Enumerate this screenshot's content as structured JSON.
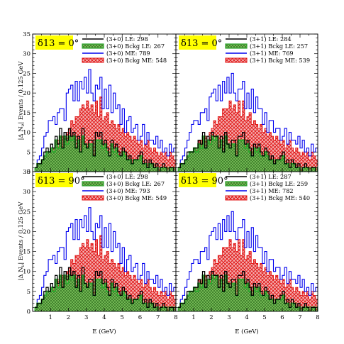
{
  "figure": {
    "ylabel": "|Δ N",
    "ylabel_sub": "ν",
    "ylabel_rest": "| Events / 0.125 GeV",
    "xlabel": "E (GeV)",
    "x_ticks": [
      "1",
      "2",
      "3",
      "4",
      "5",
      "6",
      "7",
      "8"
    ],
    "y_ticks": [
      "0",
      "5",
      "10",
      "15",
      "20",
      "25",
      "30",
      "35"
    ],
    "colors": {
      "le": "#000000",
      "bckg_le": "#2fa82f",
      "me": "#0000ee",
      "bckg_me": "#e01010",
      "badge": "#ffff00"
    }
  },
  "chart_data": [
    {
      "type": "area",
      "delta_label": "δ13 = 0°",
      "xlim": [
        0,
        8
      ],
      "ylim": [
        0,
        35
      ],
      "legend": [
        "(3+0) LE: 298",
        "(3+0) Bckg LE: 267",
        "(3+0) ME: 789",
        "(3+0) Bckg ME: 548"
      ],
      "bin_width": 0.125,
      "x_start": 0.125,
      "series": [
        {
          "name": "(3+0) LE: 298",
          "values": [
            1,
            2,
            2,
            3,
            5,
            6,
            5,
            7,
            6,
            9,
            7,
            11,
            6,
            10,
            8,
            11,
            9,
            10,
            6,
            9,
            5,
            11,
            7,
            6,
            8,
            8,
            4,
            10,
            9,
            10,
            7,
            8,
            6,
            4,
            8,
            6,
            7,
            5,
            4,
            6,
            5,
            3,
            4,
            2,
            3,
            3,
            4,
            5,
            2,
            3,
            1,
            3,
            2,
            1,
            2,
            0,
            1,
            2,
            1,
            0,
            1,
            1,
            0,
            1
          ]
        },
        {
          "name": "(3+0) Bckg LE: 267",
          "values": [
            1,
            2,
            2,
            3,
            4,
            5,
            5,
            6,
            5,
            8,
            6,
            9,
            6,
            9,
            7,
            9,
            8,
            9,
            6,
            8,
            5,
            9,
            7,
            6,
            7,
            7,
            4,
            8,
            8,
            8,
            6,
            7,
            5,
            4,
            7,
            5,
            6,
            4,
            4,
            5,
            4,
            3,
            3,
            2,
            3,
            3,
            3,
            4,
            2,
            2,
            1,
            2,
            2,
            1,
            1,
            0,
            1,
            1,
            1,
            0,
            1,
            1,
            0,
            1
          ]
        },
        {
          "name": "(3+0) ME: 789",
          "values": [
            1,
            3,
            4,
            6,
            9,
            10,
            13,
            13,
            14,
            12,
            15,
            16,
            16,
            13,
            20,
            21,
            22,
            18,
            23,
            18,
            23,
            21,
            24,
            20,
            26,
            20,
            18,
            22,
            21,
            24,
            16,
            21,
            16,
            22,
            15,
            20,
            16,
            17,
            12,
            16,
            10,
            13,
            14,
            10,
            11,
            12,
            8,
            9,
            12,
            7,
            10,
            8,
            8,
            7,
            9,
            6,
            8,
            5,
            6,
            4,
            7,
            5,
            6,
            5
          ]
        },
        {
          "name": "(3+0) Bckg ME: 548",
          "values": [
            0,
            1,
            2,
            3,
            4,
            5,
            5,
            6,
            6,
            8,
            8,
            8,
            9,
            8,
            10,
            11,
            13,
            12,
            14,
            14,
            16,
            17,
            16,
            18,
            16,
            17,
            15,
            18,
            14,
            19,
            13,
            14,
            15,
            12,
            13,
            12,
            11,
            12,
            10,
            11,
            9,
            10,
            9,
            8,
            9,
            8,
            7,
            8,
            6,
            7,
            8,
            6,
            5,
            6,
            5,
            4,
            5,
            4,
            5,
            3,
            5,
            4,
            3,
            4
          ]
        }
      ]
    },
    {
      "type": "area",
      "delta_label": "δ13 = 0°",
      "xlim": [
        0,
        8
      ],
      "ylim": [
        0,
        35
      ],
      "legend": [
        "(3+1) LE: 284",
        "(3+1) Bckg LE: 257",
        "(3+1) ME: 769",
        "(3+1) Bckg ME: 539"
      ],
      "bin_width": 0.125,
      "x_start": 0.125,
      "series": [
        {
          "name": "(3+1) LE: 284",
          "values": [
            1,
            2,
            2,
            3,
            5,
            5,
            5,
            6,
            6,
            8,
            7,
            10,
            6,
            9,
            8,
            10,
            9,
            9,
            6,
            9,
            5,
            10,
            7,
            6,
            8,
            8,
            4,
            9,
            9,
            10,
            7,
            8,
            6,
            4,
            7,
            6,
            7,
            5,
            4,
            6,
            5,
            3,
            4,
            2,
            3,
            3,
            4,
            5,
            2,
            3,
            1,
            3,
            2,
            1,
            2,
            0,
            1,
            2,
            1,
            0,
            1,
            1,
            0,
            1
          ]
        },
        {
          "name": "(3+1) Bckg LE: 257",
          "values": [
            1,
            2,
            2,
            3,
            4,
            5,
            5,
            6,
            5,
            7,
            6,
            9,
            6,
            8,
            7,
            9,
            8,
            9,
            6,
            8,
            5,
            9,
            7,
            6,
            7,
            7,
            4,
            8,
            8,
            8,
            6,
            7,
            5,
            4,
            6,
            5,
            6,
            4,
            4,
            5,
            4,
            3,
            3,
            2,
            3,
            3,
            3,
            4,
            2,
            2,
            1,
            2,
            2,
            1,
            1,
            0,
            1,
            1,
            1,
            0,
            1,
            1,
            0,
            1
          ]
        },
        {
          "name": "(3+1) ME: 769",
          "values": [
            1,
            3,
            4,
            6,
            8,
            10,
            12,
            13,
            13,
            12,
            15,
            15,
            16,
            13,
            19,
            20,
            21,
            18,
            22,
            18,
            23,
            20,
            24,
            20,
            25,
            20,
            18,
            21,
            21,
            23,
            16,
            20,
            16,
            21,
            15,
            19,
            16,
            16,
            12,
            15,
            10,
            13,
            13,
            10,
            11,
            11,
            8,
            9,
            11,
            7,
            10,
            8,
            8,
            7,
            9,
            6,
            8,
            5,
            6,
            4,
            7,
            5,
            6,
            5
          ]
        },
        {
          "name": "(3+1) Bckg ME: 539",
          "values": [
            0,
            1,
            2,
            3,
            4,
            5,
            5,
            6,
            6,
            8,
            8,
            8,
            9,
            8,
            10,
            11,
            13,
            12,
            14,
            14,
            16,
            16,
            16,
            18,
            16,
            17,
            15,
            18,
            14,
            18,
            13,
            14,
            15,
            12,
            13,
            12,
            11,
            12,
            10,
            11,
            9,
            10,
            9,
            8,
            9,
            8,
            7,
            8,
            6,
            7,
            8,
            6,
            5,
            6,
            5,
            4,
            5,
            4,
            5,
            3,
            5,
            4,
            3,
            4
          ]
        }
      ]
    },
    {
      "type": "area",
      "delta_label": "δ13 = 90°",
      "xlim": [
        0,
        8
      ],
      "ylim": [
        0,
        35
      ],
      "legend": [
        "(3+0) LE: 298",
        "(3+0) Bckg LE: 267",
        "(3+0) ME: 793",
        "(3+0) Bckg ME: 549"
      ],
      "bin_width": 0.125,
      "x_start": 0.125,
      "series": [
        {
          "name": "(3+0) LE: 298",
          "values": [
            1,
            2,
            2,
            3,
            5,
            6,
            5,
            7,
            6,
            9,
            7,
            11,
            6,
            10,
            8,
            11,
            9,
            10,
            6,
            9,
            5,
            11,
            7,
            6,
            8,
            8,
            4,
            10,
            9,
            10,
            7,
            8,
            6,
            4,
            8,
            6,
            7,
            5,
            4,
            6,
            5,
            3,
            4,
            2,
            3,
            3,
            4,
            5,
            2,
            3,
            1,
            3,
            2,
            1,
            2,
            0,
            1,
            2,
            1,
            0,
            1,
            1,
            0,
            1
          ]
        },
        {
          "name": "(3+0) Bckg LE: 267",
          "values": [
            1,
            2,
            2,
            3,
            4,
            5,
            5,
            6,
            5,
            8,
            6,
            9,
            6,
            9,
            7,
            9,
            8,
            9,
            6,
            8,
            5,
            9,
            7,
            6,
            7,
            7,
            4,
            8,
            8,
            8,
            6,
            7,
            5,
            4,
            7,
            5,
            6,
            4,
            4,
            5,
            4,
            3,
            3,
            2,
            3,
            3,
            3,
            4,
            2,
            2,
            1,
            2,
            2,
            1,
            1,
            0,
            1,
            1,
            1,
            0,
            1,
            1,
            0,
            1
          ]
        },
        {
          "name": "(3+0) ME: 793",
          "values": [
            1,
            3,
            4,
            6,
            9,
            10,
            13,
            13,
            14,
            12,
            15,
            16,
            16,
            13,
            20,
            21,
            22,
            18,
            23,
            18,
            23,
            21,
            24,
            20,
            26,
            20,
            18,
            22,
            21,
            24,
            16,
            21,
            16,
            22,
            15,
            20,
            16,
            17,
            12,
            16,
            10,
            13,
            14,
            10,
            11,
            12,
            8,
            9,
            12,
            7,
            10,
            8,
            8,
            7,
            9,
            6,
            8,
            5,
            6,
            4,
            7,
            5,
            6,
            5
          ]
        },
        {
          "name": "(3+0) Bckg ME: 549",
          "values": [
            0,
            1,
            2,
            3,
            4,
            5,
            5,
            6,
            6,
            8,
            8,
            8,
            9,
            8,
            10,
            11,
            13,
            12,
            14,
            14,
            16,
            17,
            16,
            18,
            16,
            17,
            15,
            18,
            14,
            19,
            13,
            14,
            15,
            12,
            13,
            12,
            11,
            12,
            10,
            11,
            9,
            10,
            9,
            8,
            9,
            8,
            7,
            8,
            6,
            7,
            8,
            6,
            5,
            6,
            5,
            4,
            5,
            4,
            5,
            3,
            5,
            4,
            3,
            4
          ]
        }
      ]
    },
    {
      "type": "area",
      "delta_label": "δ13 = 90°",
      "xlim": [
        0,
        8
      ],
      "ylim": [
        0,
        35
      ],
      "legend": [
        "(3+1) LE: 287",
        "(3+1) Bckg LE: 259",
        "(3+1) ME: 782",
        "(3+1) Bckg ME: 540"
      ],
      "bin_width": 0.125,
      "x_start": 0.125,
      "series": [
        {
          "name": "(3+1) LE: 287",
          "values": [
            1,
            2,
            2,
            3,
            5,
            5,
            5,
            6,
            6,
            8,
            7,
            10,
            6,
            9,
            8,
            10,
            9,
            9,
            6,
            9,
            5,
            10,
            7,
            6,
            8,
            8,
            4,
            9,
            9,
            10,
            7,
            8,
            6,
            4,
            7,
            6,
            7,
            5,
            4,
            6,
            5,
            3,
            4,
            2,
            3,
            3,
            4,
            5,
            2,
            3,
            1,
            3,
            2,
            1,
            2,
            0,
            1,
            2,
            1,
            0,
            1,
            1,
            0,
            1
          ]
        },
        {
          "name": "(3+1) Bckg LE: 259",
          "values": [
            1,
            2,
            2,
            3,
            4,
            5,
            5,
            6,
            5,
            7,
            6,
            9,
            6,
            8,
            7,
            9,
            8,
            9,
            6,
            8,
            5,
            9,
            7,
            6,
            7,
            7,
            4,
            8,
            8,
            8,
            6,
            7,
            5,
            4,
            6,
            5,
            6,
            4,
            4,
            5,
            4,
            3,
            3,
            2,
            3,
            3,
            3,
            4,
            2,
            2,
            1,
            2,
            2,
            1,
            1,
            0,
            1,
            1,
            1,
            0,
            1,
            1,
            0,
            1
          ]
        },
        {
          "name": "(3+1) ME: 782",
          "values": [
            1,
            3,
            4,
            6,
            8,
            10,
            12,
            13,
            13,
            12,
            15,
            15,
            16,
            13,
            19,
            20,
            21,
            18,
            22,
            18,
            23,
            20,
            24,
            20,
            25,
            20,
            18,
            21,
            21,
            23,
            16,
            20,
            16,
            21,
            15,
            19,
            16,
            16,
            12,
            15,
            10,
            13,
            13,
            10,
            11,
            11,
            8,
            9,
            11,
            7,
            10,
            8,
            8,
            7,
            9,
            6,
            8,
            5,
            6,
            4,
            7,
            5,
            6,
            5
          ]
        },
        {
          "name": "(3+1) Bckg ME: 540",
          "values": [
            0,
            1,
            2,
            3,
            4,
            5,
            5,
            6,
            6,
            8,
            8,
            8,
            9,
            8,
            10,
            11,
            13,
            12,
            14,
            14,
            16,
            16,
            16,
            18,
            16,
            17,
            15,
            18,
            14,
            18,
            13,
            14,
            15,
            12,
            13,
            12,
            11,
            12,
            10,
            11,
            9,
            10,
            9,
            8,
            9,
            8,
            7,
            8,
            6,
            7,
            8,
            6,
            5,
            6,
            5,
            4,
            5,
            4,
            5,
            3,
            5,
            4,
            3,
            4
          ]
        }
      ]
    }
  ]
}
